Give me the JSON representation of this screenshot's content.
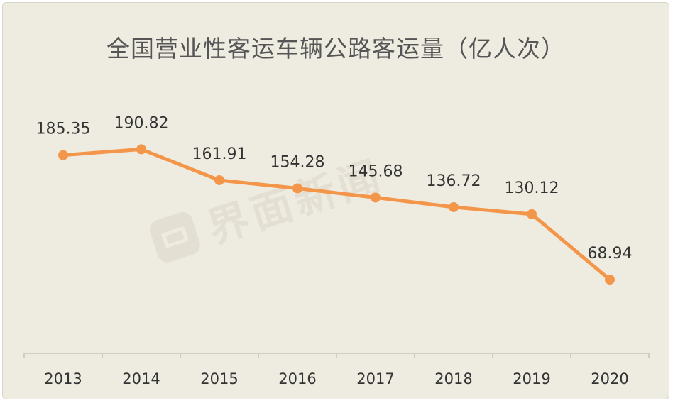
{
  "chart_data": {
    "type": "line",
    "title": "全国营业性客运车辆公路客运量（亿人次）",
    "categories": [
      "2013",
      "2014",
      "2015",
      "2016",
      "2017",
      "2018",
      "2019",
      "2020"
    ],
    "series": [
      {
        "values": [
          185.35,
          190.82,
          161.91,
          154.28,
          145.68,
          136.72,
          130.12,
          68.94
        ]
      }
    ],
    "data_labels": [
      "185.35",
      "190.82",
      "161.91",
      "154.28",
      "145.68",
      "136.72",
      "130.12",
      "68.94"
    ],
    "ylim": [
      0,
      280
    ],
    "grid": false,
    "legend": "none",
    "colors": {
      "line": "#f4964a",
      "background": "#eeebe0",
      "axis": "#c8c5b9",
      "text": "#333333"
    }
  },
  "watermark": {
    "text": "界面新闻",
    "icon": "jiemian-logo-icon"
  }
}
